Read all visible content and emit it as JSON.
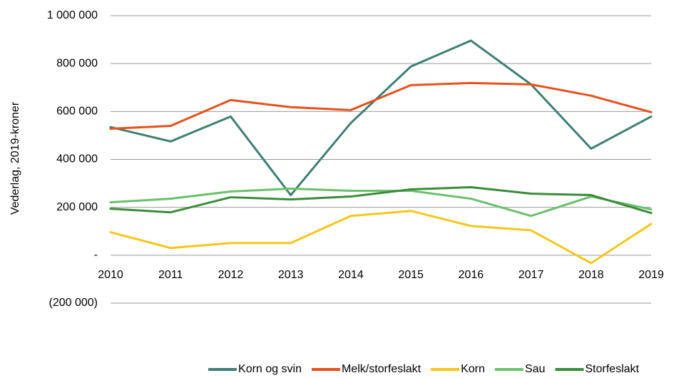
{
  "chart_data": {
    "type": "line",
    "y_label": "Vederlag, 2019-kroner",
    "categories": [
      "2010",
      "2011",
      "2012",
      "2013",
      "2014",
      "2015",
      "2016",
      "2017",
      "2018",
      "2019"
    ],
    "series": [
      {
        "name": "Korn og svin",
        "color": "#3f7f73",
        "values": [
          535000,
          475000,
          579000,
          251000,
          552000,
          788000,
          896000,
          713000,
          445000,
          579000
        ]
      },
      {
        "name": "Melk/storfeslakt",
        "color": "#e8501c",
        "values": [
          528000,
          540000,
          648000,
          618000,
          606000,
          710000,
          719000,
          713000,
          666000,
          597000
        ]
      },
      {
        "name": "Korn",
        "color": "#f7c61a",
        "values": [
          96000,
          30000,
          51000,
          51000,
          164000,
          185000,
          122000,
          104000,
          -33000,
          131000
        ]
      },
      {
        "name": "Sau",
        "color": "#6cbf6c",
        "values": [
          221000,
          236000,
          266000,
          278000,
          269000,
          269000,
          236000,
          164000,
          245000,
          191000
        ]
      },
      {
        "name": "Storfeslakt",
        "color": "#3a8c3a",
        "values": [
          194000,
          179000,
          242000,
          233000,
          245000,
          275000,
          284000,
          257000,
          251000,
          176000
        ]
      }
    ],
    "ylim": [
      -200000,
      1000000
    ],
    "yticks": [
      {
        "value": -200000,
        "label": "(200 000)"
      },
      {
        "value": 0,
        "label": "-"
      },
      {
        "value": 200000,
        "label": "200 000"
      },
      {
        "value": 400000,
        "label": "400 000"
      },
      {
        "value": 600000,
        "label": "600 000"
      },
      {
        "value": 800000,
        "label": "800 000"
      },
      {
        "value": 1000000,
        "label": "1 000 000"
      }
    ],
    "grid": true,
    "legend": "bottom"
  }
}
